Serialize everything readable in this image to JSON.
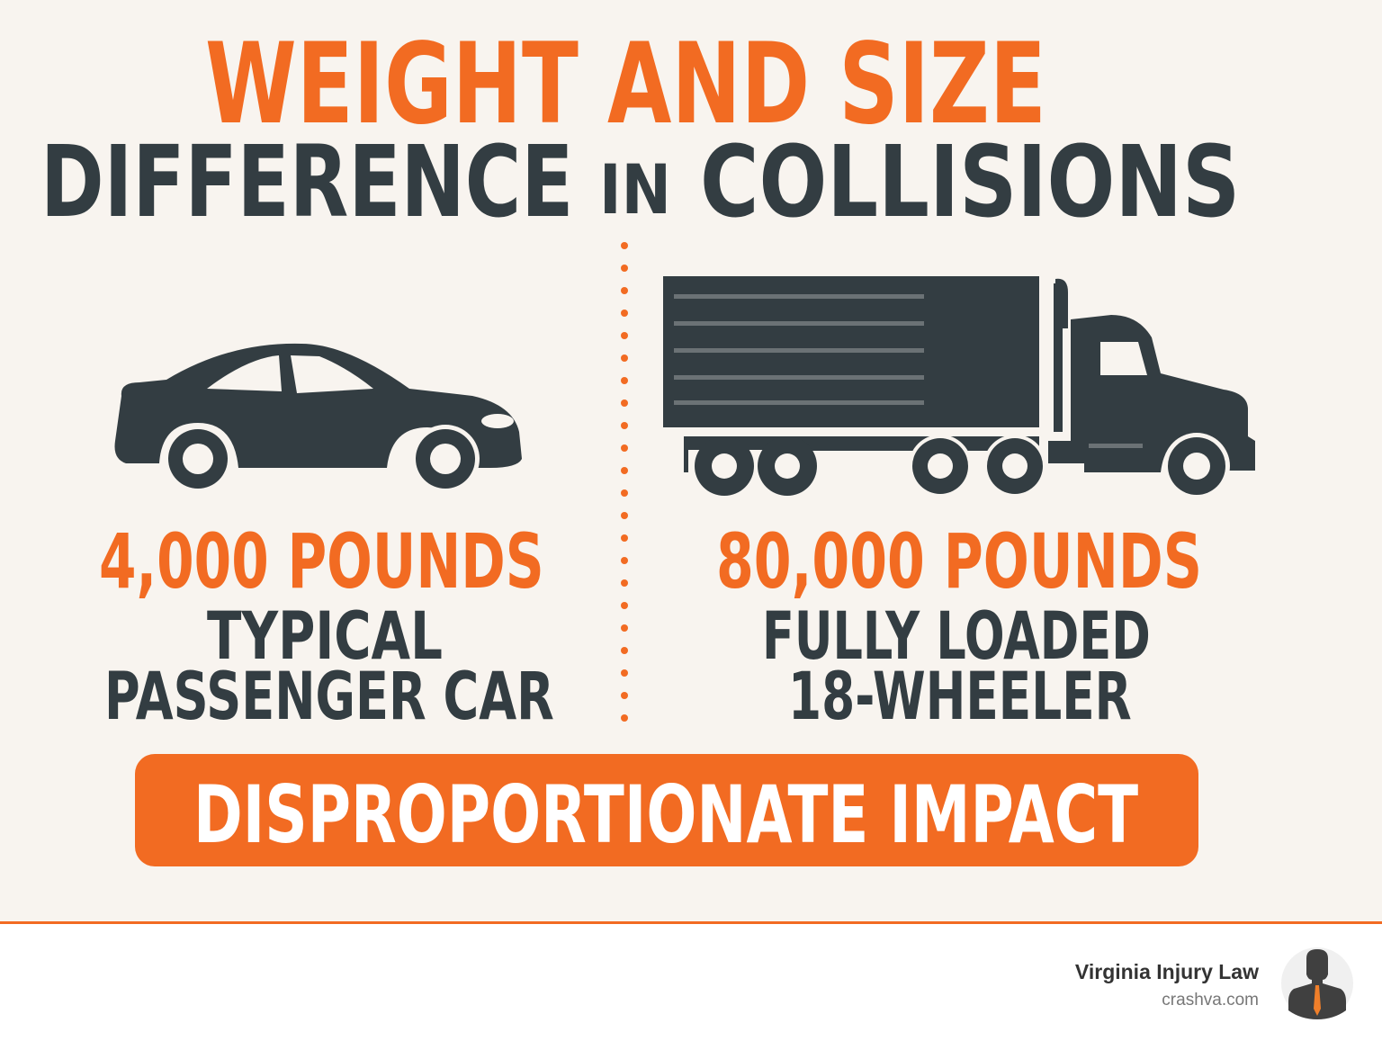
{
  "title": {
    "line1": "WEIGHT AND SIZE",
    "line2_a": "DIFFERENCE",
    "line2_b": "IN",
    "line2_c": "COLLISIONS"
  },
  "left": {
    "icon": "car-icon",
    "weight": "4,000 POUNDS",
    "label1": "TYPICAL",
    "label2": "PASSENGER CAR"
  },
  "right": {
    "icon": "semi-truck-icon",
    "weight": "80,000 POUNDS",
    "label1": "FULLY LOADED",
    "label2": "18-WHEELER"
  },
  "banner": {
    "text": "DISPROPORTIONATE IMPACT"
  },
  "footer": {
    "brand": "Virginia Injury Law",
    "url": "crashva.com",
    "logo_icon": "lawyer-avatar-icon"
  },
  "colors": {
    "accent": "#f26b22",
    "dark": "#333d42",
    "background": "#f8f4ef"
  }
}
